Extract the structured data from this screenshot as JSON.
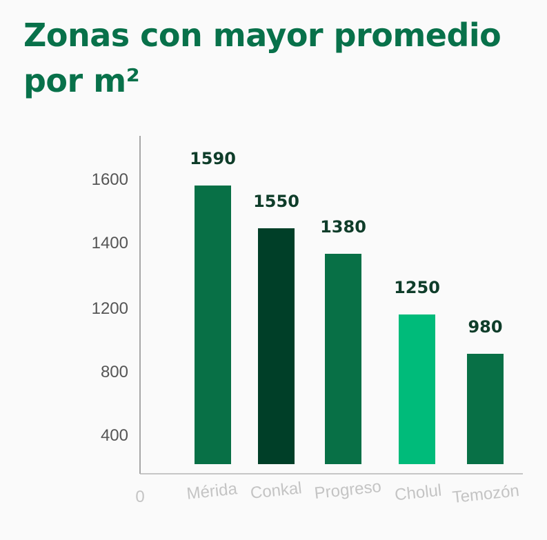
{
  "title": "Zonas con mayor promedio por m²",
  "colors": {
    "title": "#08714a",
    "bars": [
      "#087046",
      "#003f28",
      "#087046",
      "#00bb7a",
      "#087046"
    ]
  },
  "chart_data": {
    "type": "bar",
    "title": "Zonas con mayor promedio por m²",
    "categories": [
      "Mérida",
      "Conkal",
      "Progreso",
      "Cholul",
      "Temozón"
    ],
    "values": [
      1590,
      1550,
      1380,
      1250,
      980
    ],
    "data_labels": [
      "1590",
      "1550",
      "1380",
      "1250",
      "980"
    ],
    "y_ticks": [
      400,
      800,
      1200,
      1400,
      1600
    ],
    "x_origin_label": "0",
    "xlabel": "",
    "ylabel": "",
    "grid": false,
    "legend": "none"
  }
}
